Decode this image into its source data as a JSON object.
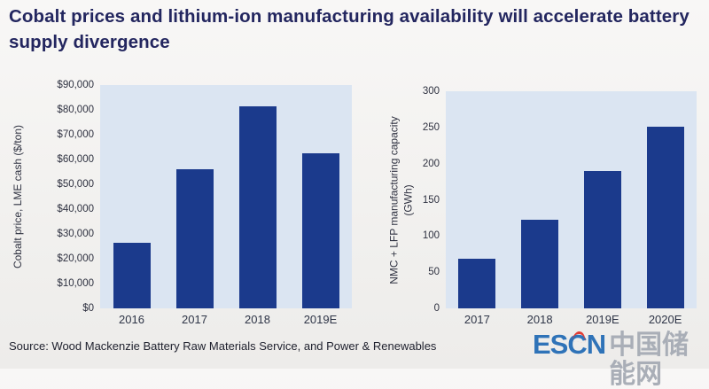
{
  "title": "Cobalt prices and lithium-ion manufacturing availability will accelerate battery supply divergence",
  "chart_data": [
    {
      "type": "bar",
      "title": "",
      "categories": [
        "2016",
        "2017",
        "2018",
        "2019E"
      ],
      "values": [
        26500,
        56000,
        81500,
        62500
      ],
      "xlabel": "",
      "ylabel": "Cobalt price, LME cash ($/ton)",
      "ylabel_lines": [
        "Cobalt price, LME cash ($/ton)"
      ],
      "ylim": [
        0,
        90000
      ],
      "yticks_bottom_to_top": [
        "$0",
        "$10,000",
        "$20,000",
        "$30,000",
        "$40,000",
        "$50,000",
        "$60,000",
        "$70,000",
        "$80,000",
        "$90,000"
      ],
      "grid": false,
      "legend": "none",
      "bar_color": "#1b3a8c",
      "plot_bg": "#dbe5f2"
    },
    {
      "type": "bar",
      "title": "",
      "categories": [
        "2017",
        "2018",
        "2019E",
        "2020E"
      ],
      "values": [
        68,
        123,
        190,
        251
      ],
      "xlabel": "",
      "ylabel": "NMC + LFP manufacturing capacity (GWh)",
      "ylabel_lines": [
        "NMC + LFP manufacturing capacity",
        "(GWh)"
      ],
      "ylim": [
        0,
        300
      ],
      "yticks_bottom_to_top": [
        "0",
        "50",
        "100",
        "150",
        "200",
        "250",
        "300"
      ],
      "grid": false,
      "legend": "none",
      "bar_color": "#1b3a8c",
      "plot_bg": "#dbe5f2"
    }
  ],
  "footer": {
    "source": "Source: Wood Mackenzie Battery Raw Materials Service, and Power & Renewables",
    "logo_en": "ESCN",
    "logo_cn": "中国储能网"
  },
  "colors": {
    "title_text": "#23265f",
    "bar": "#1b3a8c",
    "plot_background": "#dbe5f2",
    "page_background": "#f2f1ef",
    "logo_blue": "#2f73b8",
    "logo_gray": "#a9aeb7",
    "logo_red": "#e23b33"
  }
}
